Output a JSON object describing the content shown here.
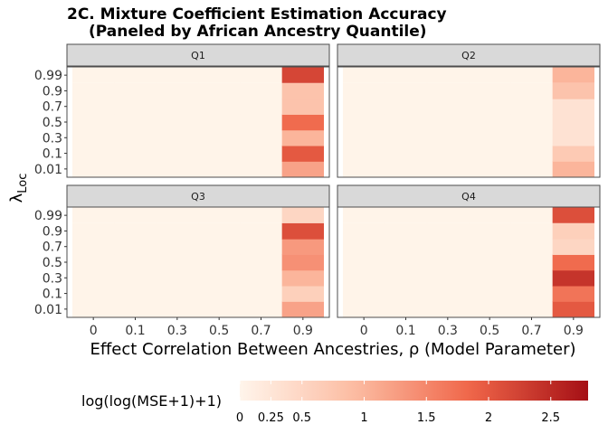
{
  "chart_data": {
    "type": "heatmap",
    "title": [
      "2C. Mixture Coefficient Estimation Accuracy",
      "(Paneled by African Ancestry Quantile)"
    ],
    "xlabel": "Effect Correlation Between Ancestries, ρ (Model Parameter)",
    "ylabel_main": "λ",
    "ylabel_sub": "Loc",
    "x_categories": [
      "0",
      "0.1",
      "0.3",
      "0.5",
      "0.7",
      "0.9"
    ],
    "y_categories": [
      "0.01",
      "0.1",
      "0.3",
      "0.5",
      "0.7",
      "0.9",
      "0.99"
    ],
    "legend": {
      "title": "log(log(MSE+1)+1)",
      "range": [
        0,
        2.8
      ],
      "ticks": [
        "0",
        "0.25",
        "0.5",
        "1",
        "1.5",
        "2",
        "2.5"
      ],
      "tick_values": [
        0,
        0.25,
        0.5,
        1,
        1.5,
        2,
        2.5
      ],
      "colors": [
        "#fff5eb",
        "#fcbba1",
        "#ef6548",
        "#a50f15"
      ],
      "placement": "bottom"
    },
    "panels": [
      {
        "label": "Q1",
        "background_value": 0.02,
        "column": "0.9",
        "values": {
          "0.01": 1.2,
          "0.1": 2.0,
          "0.3": 1.0,
          "0.5": 1.8,
          "0.7": 0.8,
          "0.9": 0.8,
          "0.99": 2.2
        }
      },
      {
        "label": "Q2",
        "background_value": 0.02,
        "column": "0.9",
        "values": {
          "0.01": 1.0,
          "0.1": 0.7,
          "0.3": 0.3,
          "0.5": 0.3,
          "0.7": 0.3,
          "0.9": 0.8,
          "0.99": 1.0
        }
      },
      {
        "label": "Q3",
        "background_value": 0.02,
        "column": "0.9",
        "values": {
          "0.01": 1.2,
          "0.1": 0.6,
          "0.3": 1.0,
          "0.5": 1.4,
          "0.7": 1.3,
          "0.9": 2.1,
          "0.99": 0.5
        }
      },
      {
        "label": "Q4",
        "background_value": 0.02,
        "column": "0.9",
        "values": {
          "0.01": 2.0,
          "0.1": 1.7,
          "0.3": 2.4,
          "0.5": 1.8,
          "0.7": 0.5,
          "0.9": 0.6,
          "0.99": 2.1
        }
      }
    ]
  }
}
